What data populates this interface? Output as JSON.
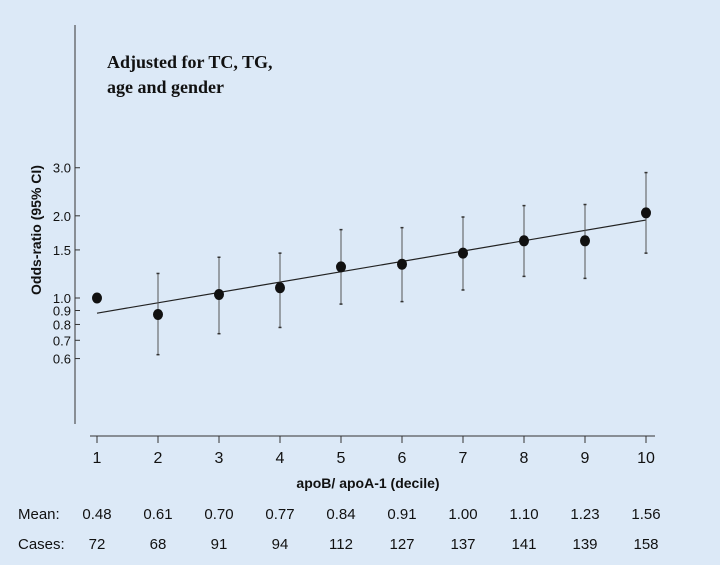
{
  "chart_data": {
    "type": "scatter",
    "annotation_lines": [
      "Adjusted for TC, TG,",
      "age and gender"
    ],
    "xlabel": "apoB/ apoA-1 (decile)",
    "ylabel": "Odds-ratio (95% CI)",
    "y_scale": "log",
    "ylim": [
      0.58,
      3.1
    ],
    "xlim": [
      0.8,
      10.6
    ],
    "x_ticks": [
      "1",
      "2",
      "3",
      "4",
      "5",
      "6",
      "7",
      "8",
      "9",
      "10"
    ],
    "y_ticks": [
      {
        "value": 0.6,
        "label": "0.6"
      },
      {
        "value": 0.7,
        "label": "0.7"
      },
      {
        "value": 0.8,
        "label": "0.8"
      },
      {
        "value": 0.9,
        "label": "0.9"
      },
      {
        "value": 1.0,
        "label": "1.0"
      },
      {
        "value": 1.5,
        "label": "1.5"
      },
      {
        "value": 2.0,
        "label": "2.0"
      },
      {
        "value": 3.0,
        "label": "3.0"
      }
    ],
    "points": [
      {
        "x": 1,
        "or": 1.0,
        "lo": null,
        "hi": null
      },
      {
        "x": 2,
        "or": 0.87,
        "lo": 0.62,
        "hi": 1.23
      },
      {
        "x": 3,
        "or": 1.03,
        "lo": 0.74,
        "hi": 1.41
      },
      {
        "x": 4,
        "or": 1.09,
        "lo": 0.78,
        "hi": 1.46
      },
      {
        "x": 5,
        "or": 1.3,
        "lo": 0.95,
        "hi": 1.78
      },
      {
        "x": 6,
        "or": 1.33,
        "lo": 0.97,
        "hi": 1.81
      },
      {
        "x": 7,
        "or": 1.46,
        "lo": 1.07,
        "hi": 1.98
      },
      {
        "x": 8,
        "or": 1.62,
        "lo": 1.2,
        "hi": 2.18
      },
      {
        "x": 9,
        "or": 1.62,
        "lo": 1.18,
        "hi": 2.2
      },
      {
        "x": 10,
        "or": 2.05,
        "lo": 1.46,
        "hi": 2.88
      }
    ],
    "trend_line": {
      "x": [
        1,
        10
      ],
      "y": [
        0.88,
        1.93
      ]
    },
    "table": {
      "mean_label": "Mean:",
      "cases_label": "Cases:",
      "mean": [
        "0.48",
        "0.61",
        "0.70",
        "0.77",
        "0.84",
        "0.91",
        "1.00",
        "1.10",
        "1.23",
        "1.56"
      ],
      "cases": [
        "72",
        "68",
        "91",
        "94",
        "112",
        "127",
        "137",
        "141",
        "139",
        "158"
      ]
    }
  }
}
